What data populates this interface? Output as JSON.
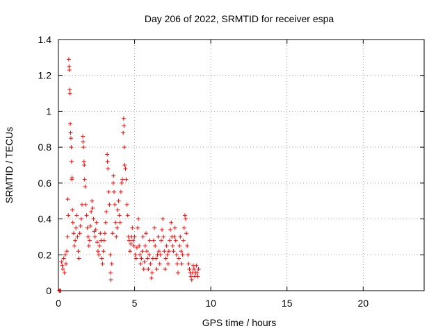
{
  "chart_data": {
    "type": "scatter",
    "title": "Day 206 of 2022, SRMTID for receiver espa",
    "xlabel": "GPS time / hours",
    "ylabel": "SRMTID / TECUs",
    "xlim": [
      0,
      24
    ],
    "ylim": [
      0,
      1.4
    ],
    "xticks": [
      0,
      5,
      10,
      15,
      20
    ],
    "yticks": [
      0,
      0.2,
      0.4,
      0.6,
      0.8,
      1,
      1.2,
      1.4
    ],
    "ytick_labels": [
      "0",
      "0.2",
      "0.4",
      "0.6",
      "0.8",
      "1",
      "1.2",
      "1.4"
    ],
    "grid": true,
    "marker": "+",
    "color": "#ff0000",
    "series": [
      {
        "name": "SRMTID",
        "points": [
          [
            0.05,
            0.0
          ],
          [
            0.1,
            0.0
          ],
          [
            0.15,
            0.0
          ],
          [
            0.2,
            0.16
          ],
          [
            0.25,
            0.14
          ],
          [
            0.3,
            0.12
          ],
          [
            0.35,
            0.18
          ],
          [
            0.4,
            0.1
          ],
          [
            0.45,
            0.2
          ],
          [
            0.5,
            0.15
          ],
          [
            0.55,
            0.22
          ],
          [
            0.6,
            0.3
          ],
          [
            0.62,
            0.51
          ],
          [
            0.65,
            0.42
          ],
          [
            0.68,
            1.29
          ],
          [
            0.7,
            1.25
          ],
          [
            0.72,
            1.23
          ],
          [
            0.74,
            1.12
          ],
          [
            0.76,
            1.1
          ],
          [
            0.78,
            0.93
          ],
          [
            0.8,
            0.88
          ],
          [
            0.82,
            0.85
          ],
          [
            0.84,
            0.8
          ],
          [
            0.86,
            0.72
          ],
          [
            0.88,
            0.62
          ],
          [
            0.9,
            0.63
          ],
          [
            0.92,
            0.45
          ],
          [
            0.95,
            0.38
          ],
          [
            1.0,
            0.32
          ],
          [
            1.05,
            0.25
          ],
          [
            1.1,
            0.28
          ],
          [
            1.15,
            0.35
          ],
          [
            1.2,
            0.42
          ],
          [
            1.25,
            0.3
          ],
          [
            1.3,
            0.22
          ],
          [
            1.35,
            0.18
          ],
          [
            1.4,
            0.32
          ],
          [
            1.45,
            0.36
          ],
          [
            1.5,
            0.4
          ],
          [
            1.55,
            0.48
          ],
          [
            1.6,
            0.86
          ],
          [
            1.62,
            0.83
          ],
          [
            1.65,
            0.8
          ],
          [
            1.68,
            0.72
          ],
          [
            1.7,
            0.7
          ],
          [
            1.72,
            0.62
          ],
          [
            1.75,
            0.58
          ],
          [
            1.8,
            0.48
          ],
          [
            1.85,
            0.42
          ],
          [
            1.9,
            0.35
          ],
          [
            1.95,
            0.3
          ],
          [
            2.0,
            0.25
          ],
          [
            2.05,
            0.28
          ],
          [
            2.1,
            0.36
          ],
          [
            2.15,
            0.44
          ],
          [
            2.2,
            0.5
          ],
          [
            2.25,
            0.46
          ],
          [
            2.3,
            0.4
          ],
          [
            2.35,
            0.33
          ],
          [
            2.4,
            0.3
          ],
          [
            2.45,
            0.34
          ],
          [
            2.5,
            0.38
          ],
          [
            2.55,
            0.27
          ],
          [
            2.6,
            0.22
          ],
          [
            2.65,
            0.2
          ],
          [
            2.7,
            0.25
          ],
          [
            2.75,
            0.32
          ],
          [
            2.8,
            0.28
          ],
          [
            2.85,
            0.18
          ],
          [
            2.9,
            0.15
          ],
          [
            2.95,
            0.22
          ],
          [
            3.0,
            0.28
          ],
          [
            3.05,
            0.32
          ],
          [
            3.1,
            0.38
          ],
          [
            3.15,
            0.44
          ],
          [
            3.2,
            0.76
          ],
          [
            3.22,
            0.72
          ],
          [
            3.25,
            0.68
          ],
          [
            3.3,
            0.55
          ],
          [
            3.35,
            0.48
          ],
          [
            3.4,
            0.2
          ],
          [
            3.42,
            0.1
          ],
          [
            3.45,
            0.06
          ],
          [
            3.5,
            0.15
          ],
          [
            3.55,
            0.32
          ],
          [
            3.6,
            0.6
          ],
          [
            3.62,
            0.64
          ],
          [
            3.65,
            0.55
          ],
          [
            3.7,
            0.48
          ],
          [
            3.75,
            0.38
          ],
          [
            3.8,
            0.3
          ],
          [
            3.85,
            0.35
          ],
          [
            3.9,
            0.45
          ],
          [
            3.95,
            0.5
          ],
          [
            4.0,
            0.42
          ],
          [
            4.05,
            0.38
          ],
          [
            4.1,
            0.55
          ],
          [
            4.15,
            0.6
          ],
          [
            4.2,
            0.62
          ],
          [
            4.25,
            0.88
          ],
          [
            4.28,
            0.96
          ],
          [
            4.3,
            0.92
          ],
          [
            4.32,
            0.8
          ],
          [
            4.35,
            0.7
          ],
          [
            4.4,
            0.68
          ],
          [
            4.45,
            0.62
          ],
          [
            4.5,
            0.48
          ],
          [
            4.55,
            0.42
          ],
          [
            4.6,
            0.3
          ],
          [
            4.65,
            0.28
          ],
          [
            4.7,
            0.22
          ],
          [
            4.75,
            0.26
          ],
          [
            4.8,
            0.3
          ],
          [
            4.85,
            0.35
          ],
          [
            4.9,
            0.28
          ],
          [
            4.95,
            0.25
          ],
          [
            5.0,
            0.3
          ],
          [
            5.05,
            0.2
          ],
          [
            5.1,
            0.18
          ],
          [
            5.15,
            0.24
          ],
          [
            5.2,
            0.35
          ],
          [
            5.25,
            0.4
          ],
          [
            5.3,
            0.25
          ],
          [
            5.35,
            0.2
          ],
          [
            5.4,
            0.15
          ],
          [
            5.45,
            0.18
          ],
          [
            5.5,
            0.22
          ],
          [
            5.55,
            0.3
          ],
          [
            5.6,
            0.12
          ],
          [
            5.65,
            0.16
          ],
          [
            5.7,
            0.25
          ],
          [
            5.75,
            0.32
          ],
          [
            5.8,
            0.22
          ],
          [
            5.85,
            0.18
          ],
          [
            5.9,
            0.12
          ],
          [
            5.95,
            0.2
          ],
          [
            6.0,
            0.28
          ],
          [
            6.05,
            0.15
          ],
          [
            6.1,
            0.07
          ],
          [
            6.15,
            0.1
          ],
          [
            6.2,
            0.18
          ],
          [
            6.25,
            0.28
          ],
          [
            6.3,
            0.35
          ],
          [
            6.35,
            0.25
          ],
          [
            6.4,
            0.18
          ],
          [
            6.45,
            0.12
          ],
          [
            6.5,
            0.2
          ],
          [
            6.55,
            0.3
          ],
          [
            6.6,
            0.22
          ],
          [
            6.65,
            0.15
          ],
          [
            6.7,
            0.2
          ],
          [
            6.75,
            0.28
          ],
          [
            6.8,
            0.34
          ],
          [
            6.85,
            0.4
          ],
          [
            6.9,
            0.3
          ],
          [
            6.95,
            0.22
          ],
          [
            7.0,
            0.12
          ],
          [
            7.05,
            0.18
          ],
          [
            7.1,
            0.25
          ],
          [
            7.15,
            0.2
          ],
          [
            7.2,
            0.15
          ],
          [
            7.25,
            0.22
          ],
          [
            7.3,
            0.28
          ],
          [
            7.35,
            0.34
          ],
          [
            7.4,
            0.38
          ],
          [
            7.45,
            0.3
          ],
          [
            7.5,
            0.25
          ],
          [
            7.55,
            0.22
          ],
          [
            7.6,
            0.3
          ],
          [
            7.65,
            0.35
          ],
          [
            7.7,
            0.28
          ],
          [
            7.75,
            0.2
          ],
          [
            7.8,
            0.15
          ],
          [
            7.85,
            0.1
          ],
          [
            7.9,
            0.18
          ],
          [
            7.95,
            0.25
          ],
          [
            8.0,
            0.3
          ],
          [
            8.05,
            0.22
          ],
          [
            8.1,
            0.15
          ],
          [
            8.15,
            0.2
          ],
          [
            8.2,
            0.28
          ],
          [
            8.25,
            0.35
          ],
          [
            8.3,
            0.42
          ],
          [
            8.35,
            0.4
          ],
          [
            8.4,
            0.32
          ],
          [
            8.45,
            0.25
          ],
          [
            8.5,
            0.2
          ],
          [
            8.55,
            0.15
          ],
          [
            8.6,
            0.12
          ],
          [
            8.65,
            0.1
          ],
          [
            8.7,
            0.08
          ],
          [
            8.75,
            0.06
          ],
          [
            8.8,
            0.1
          ],
          [
            8.85,
            0.14
          ],
          [
            8.9,
            0.12
          ],
          [
            8.95,
            0.08
          ],
          [
            9.0,
            0.1
          ],
          [
            9.05,
            0.14
          ],
          [
            9.1,
            0.1
          ],
          [
            9.15,
            0.08
          ],
          [
            9.2,
            0.12
          ]
        ]
      }
    ]
  }
}
